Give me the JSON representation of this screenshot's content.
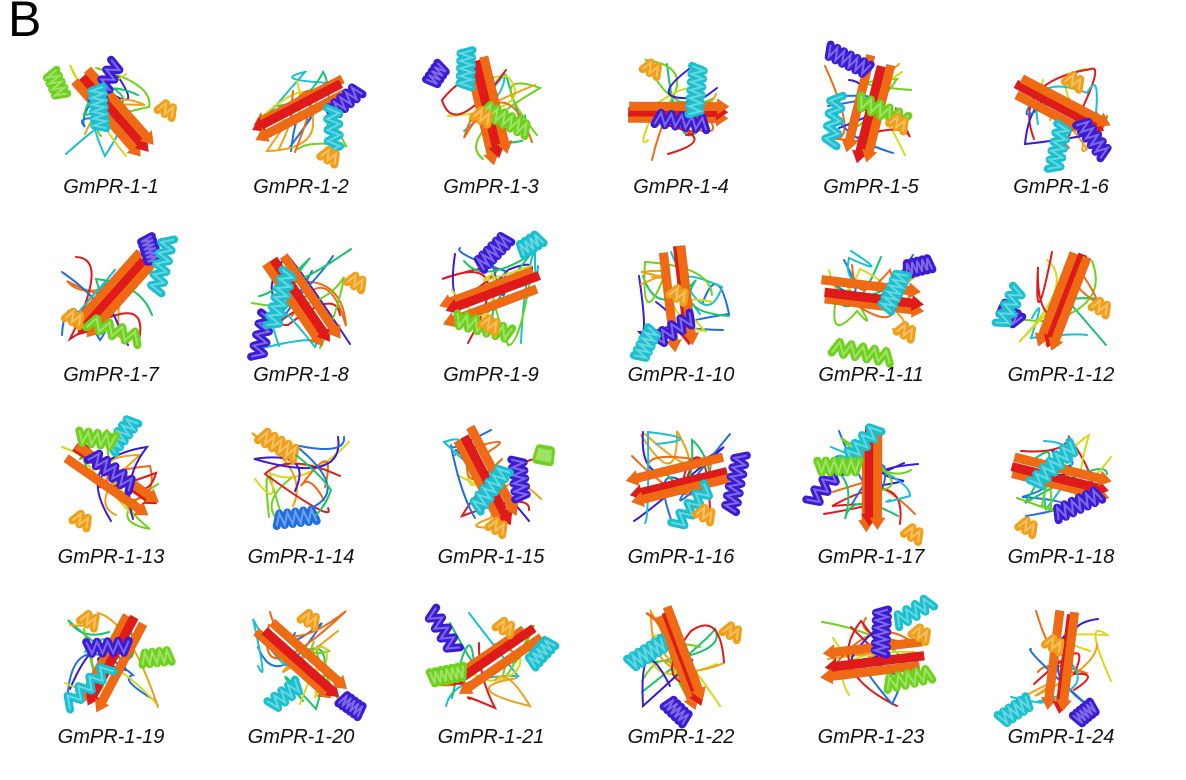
{
  "panel_label": "B",
  "figures": [
    {
      "id": "GmPR-1-1"
    },
    {
      "id": "GmPR-1-2"
    },
    {
      "id": "GmPR-1-3"
    },
    {
      "id": "GmPR-1-4"
    },
    {
      "id": "GmPR-1-5"
    },
    {
      "id": "GmPR-1-6"
    },
    {
      "id": "GmPR-1-7"
    },
    {
      "id": "GmPR-1-8"
    },
    {
      "id": "GmPR-1-9"
    },
    {
      "id": "GmPR-1-10"
    },
    {
      "id": "GmPR-1-11"
    },
    {
      "id": "GmPR-1-12"
    },
    {
      "id": "GmPR-1-13"
    },
    {
      "id": "GmPR-1-14"
    },
    {
      "id": "GmPR-1-15"
    },
    {
      "id": "GmPR-1-16"
    },
    {
      "id": "GmPR-1-17"
    },
    {
      "id": "GmPR-1-18"
    },
    {
      "id": "GmPR-1-19"
    },
    {
      "id": "GmPR-1-20"
    },
    {
      "id": "GmPR-1-21"
    },
    {
      "id": "GmPR-1-22"
    },
    {
      "id": "GmPR-1-23"
    },
    {
      "id": "GmPR-1-24"
    }
  ],
  "palette": [
    "#3b1bd6",
    "#1f6fe0",
    "#19c0d0",
    "#18c46a",
    "#6ed21c",
    "#d8d81a",
    "#f0a018",
    "#f06a14",
    "#e01a1a"
  ]
}
